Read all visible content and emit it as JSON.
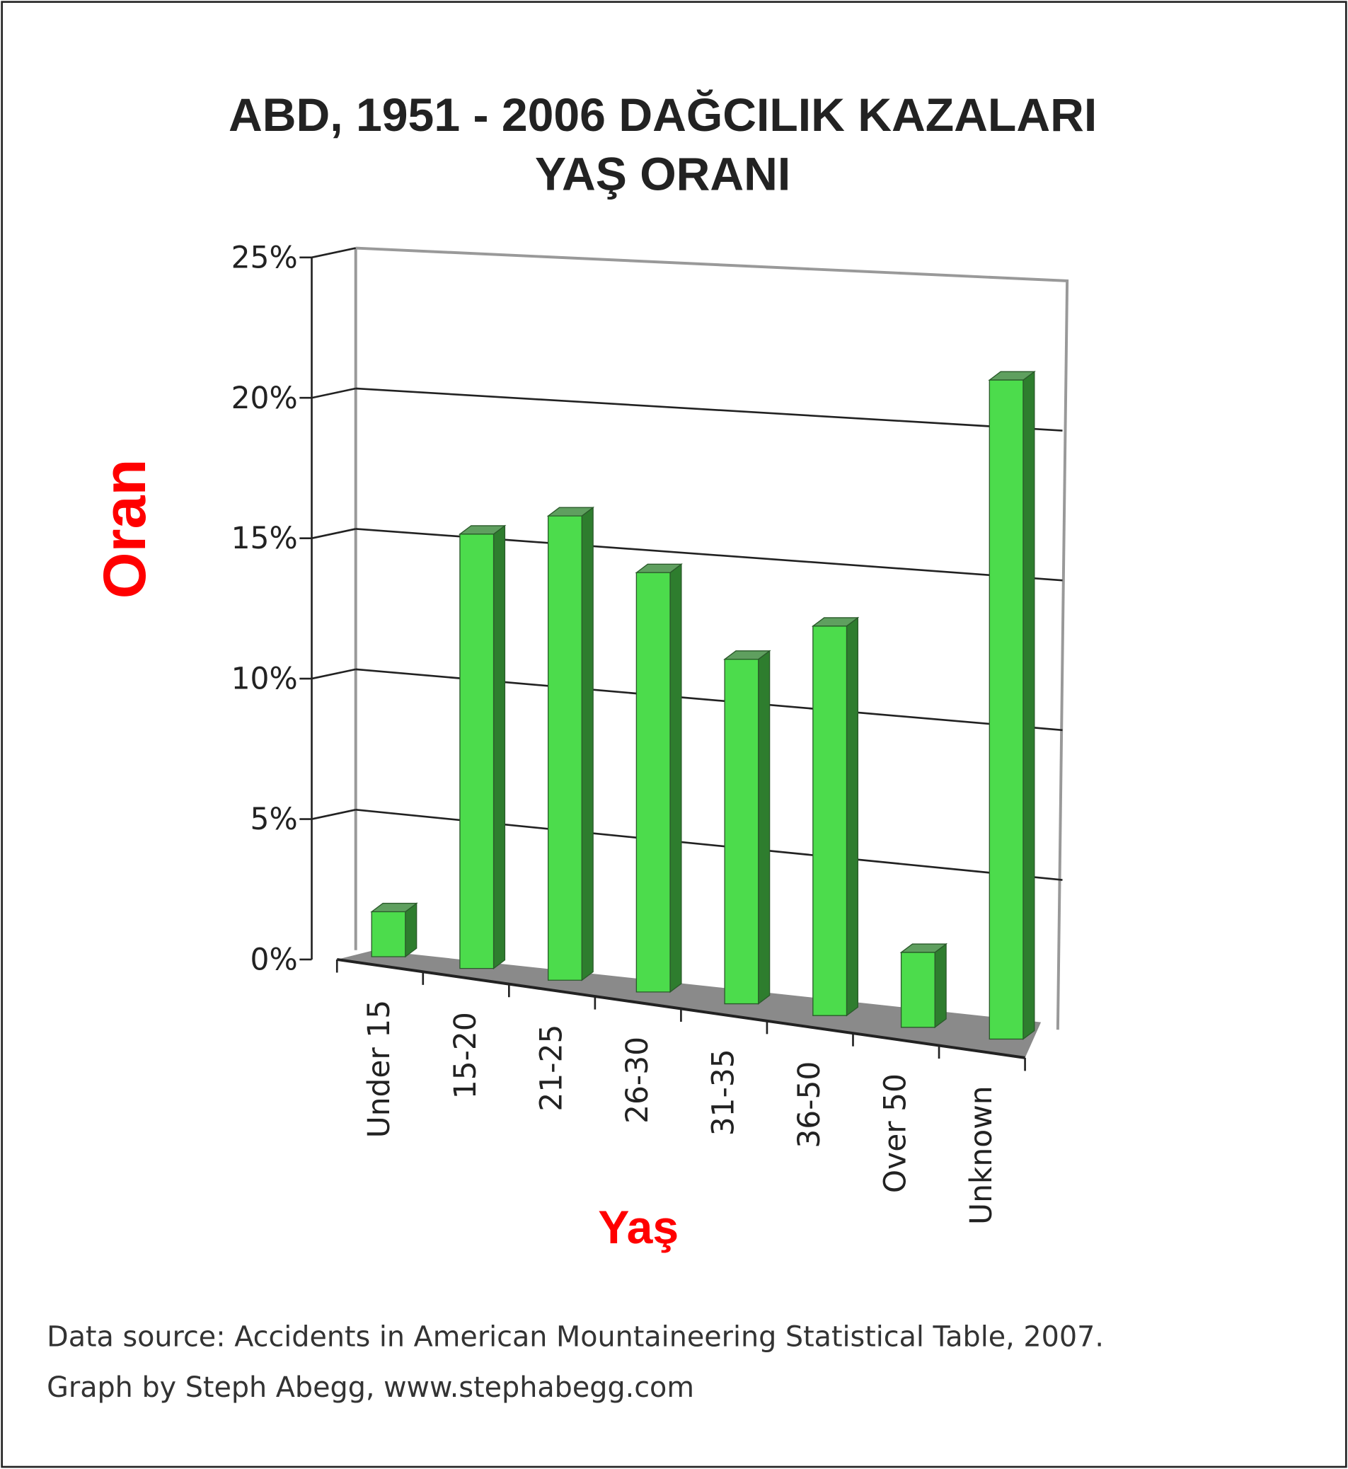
{
  "chart_data": {
    "type": "bar3d",
    "title_lines": [
      "ABD, 1951 - 2006 DAĞCILIK KAZALARI",
      "YAŞ ORANI"
    ],
    "x_label": "Yaş",
    "y_label": "Oran",
    "categories": [
      "Under 15",
      "15-20",
      "21-25",
      "26-30",
      "31-35",
      "36-50",
      "Over 50",
      "Unknown"
    ],
    "values": [
      1.5,
      14.5,
      15.5,
      14,
      11.5,
      13,
      2.5,
      22
    ],
    "color": "#4cdc4c",
    "ylim": [
      0,
      25
    ],
    "yticks": [
      {
        "value": 0,
        "label": "0%"
      },
      {
        "value": 5,
        "label": "5%"
      },
      {
        "value": 10,
        "label": "10%"
      },
      {
        "value": 15,
        "label": "15%"
      },
      {
        "value": 20,
        "label": "20%"
      },
      {
        "value": 25,
        "label": "25%"
      }
    ],
    "grid": true,
    "notes": [
      "Data source: Accidents in American Mountaineering Statistical Table, 2007.",
      "Graph by Steph Abegg, www.stephabegg.com"
    ]
  }
}
